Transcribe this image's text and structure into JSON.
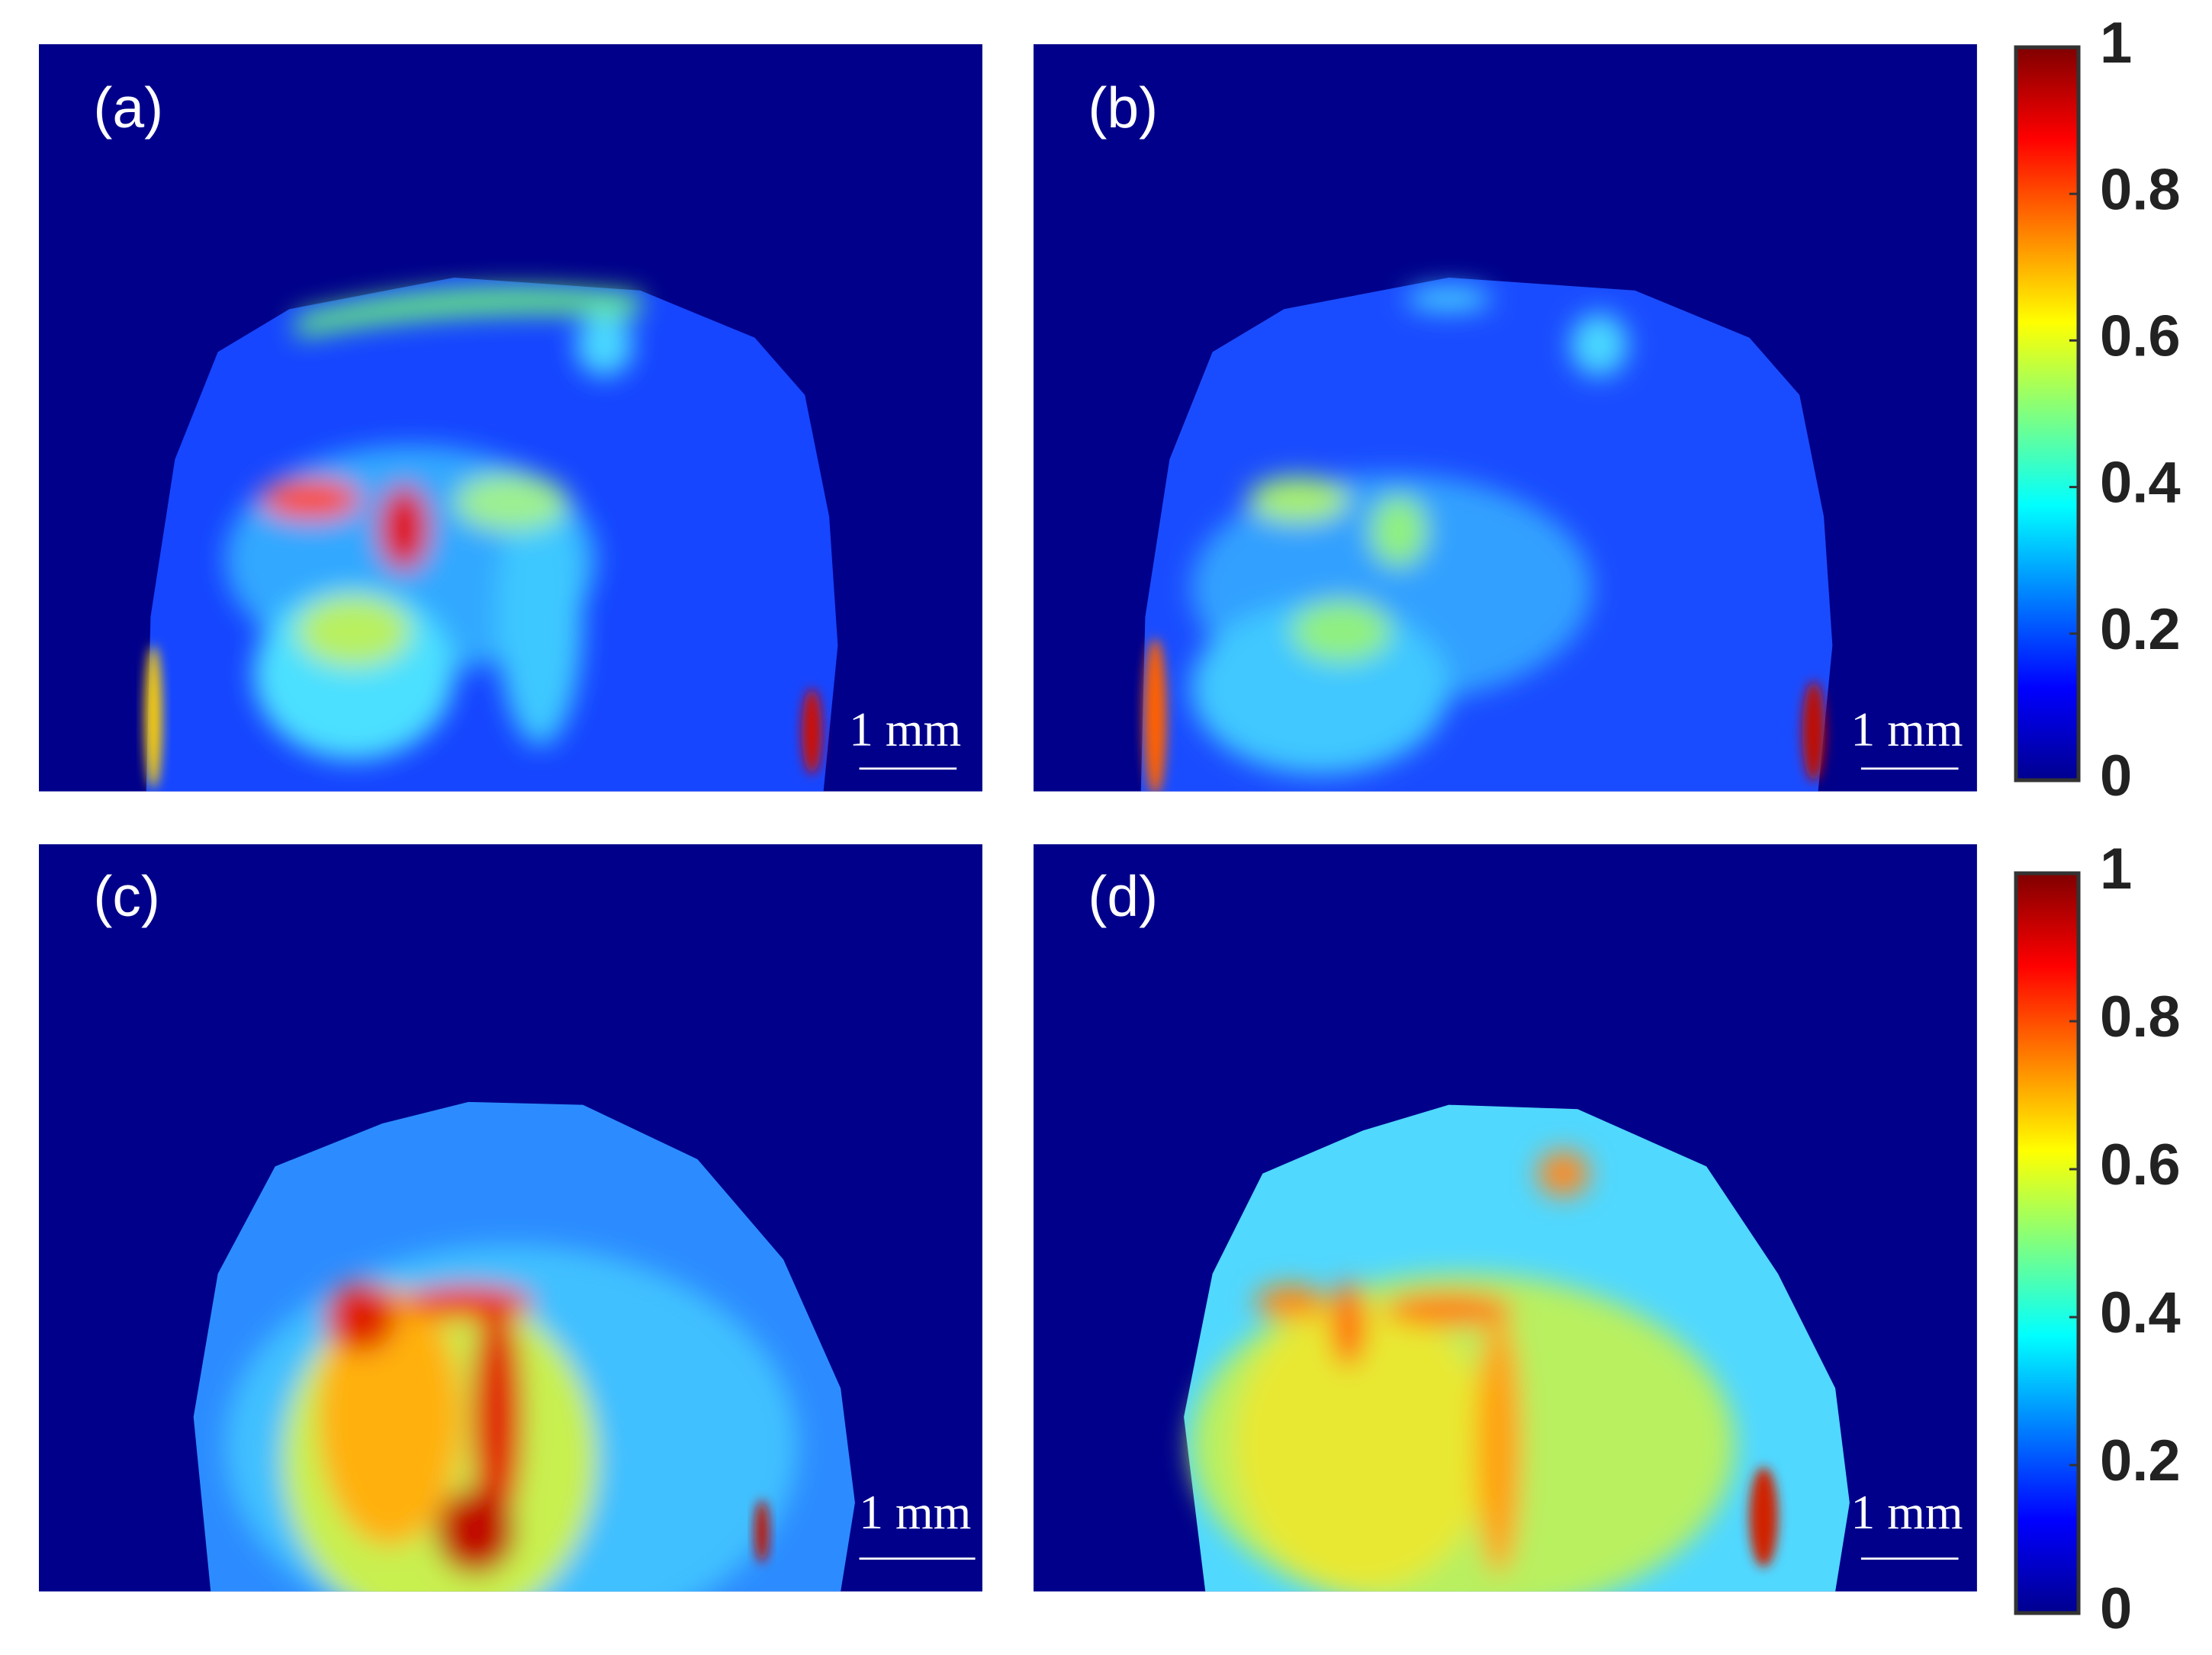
{
  "panels": [
    {
      "label": "(a)",
      "scale_bar": "1 mm"
    },
    {
      "label": "(b)",
      "scale_bar": "1 mm"
    },
    {
      "label": "(c)",
      "scale_bar": "1 mm"
    },
    {
      "label": "(d)",
      "scale_bar": "1 mm"
    }
  ],
  "colorbars": [
    {
      "range": [
        0,
        1
      ],
      "ticks": [
        0,
        0.2,
        0.4,
        0.6,
        0.8,
        1
      ]
    },
    {
      "range": [
        0,
        1
      ],
      "ticks": [
        0,
        0.2,
        0.4,
        0.6,
        0.8,
        1
      ]
    }
  ]
}
